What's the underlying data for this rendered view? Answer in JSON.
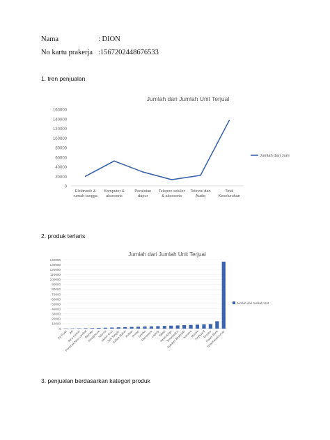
{
  "identity": {
    "name_label": "Nama",
    "name_value": ": DION",
    "card_label": "No kartu prakerja",
    "card_value": ":1567202448676533"
  },
  "sections": {
    "s1": "1. tren penjualan",
    "s2": "2. produk terlaris",
    "s3": "3. penjualan berdasarkan kategori produk"
  },
  "chart_data": [
    {
      "type": "line",
      "title": "Jumlah dari Jumlah Unit Terjual",
      "categories": [
        [
          "Elektronik &",
          "rumah tangga"
        ],
        [
          "Komputer &",
          "aksesoris"
        ],
        [
          "Peralatan",
          "dapur"
        ],
        [
          "Telepon seluler",
          "& aksesoris"
        ],
        [
          "Televisi dan",
          "Audio"
        ],
        [
          "Total",
          "Keseluruhan"
        ]
      ],
      "series": [
        {
          "name": "Jumlah dari Jumlah",
          "values": [
            20000,
            52000,
            29000,
            13000,
            22000,
            137000
          ],
          "color": "#3b64ad"
        }
      ],
      "yticks": [
        0,
        20000,
        40000,
        60000,
        80000,
        100000,
        120000,
        140000,
        160000
      ],
      "ylim": [
        0,
        160000
      ],
      "legend": "right"
    },
    {
      "type": "bar",
      "title": "Jumlah dari Jumlah Unit Terjual",
      "categories": [
        "Air Fryer",
        "AC",
        "Rice cooker",
        "Penanak Nasi Lambat",
        "Blender",
        "Headphone",
        "Televisi",
        "Mesin Cuci",
        "Jam Tangan",
        "Coffee Maker",
        "Kulkas",
        "Printer",
        "Setrika",
        "Microwave",
        "Laptop",
        "Tablet",
        "Kipas Angin",
        "Smartwatch",
        "Speaker Bluetooth",
        "Kamera",
        "Mouse",
        "Keyboard",
        "Monitor",
        "Power Bank",
        "Total Keseluruhan"
      ],
      "series": [
        {
          "name": "Jumlah dari Jumlah Unit Terjual",
          "values": [
            300,
            500,
            700,
            900,
            1100,
            1500,
            1800,
            2200,
            2600,
            3000,
            3400,
            3800,
            4200,
            4600,
            5000,
            5400,
            6000,
            6500,
            7000,
            7500,
            8000,
            8600,
            9200,
            15000,
            136000
          ],
          "color": "#3b64ad"
        }
      ],
      "yticks": [
        0,
        10000,
        20000,
        30000,
        40000,
        50000,
        60000,
        70000,
        80000,
        90000,
        100000,
        110000,
        120000,
        130000,
        140000
      ],
      "ylim": [
        0,
        140000
      ],
      "legend": "right"
    }
  ]
}
